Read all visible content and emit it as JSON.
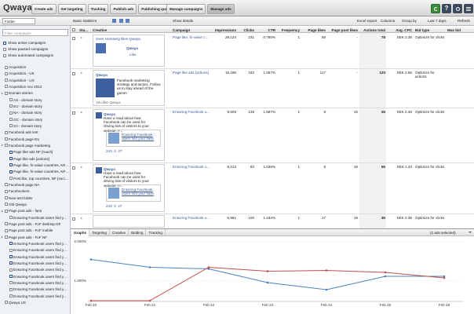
{
  "topbar": {
    "logo": "Qwaya",
    "workflow_buttons": [
      "Create ads",
      "Set targeting",
      "Tracking",
      "Publish ads",
      "Publishing queue"
    ],
    "manage_buttons": [
      "Manage campaigns",
      "Manage ads"
    ],
    "help": "?"
  },
  "toolbar": {
    "folder": "Folder",
    "basic_statistics": "Basic statistics",
    "show_details": "Show details",
    "excel_export": "Excel export",
    "columns": "Columns",
    "group_by": "Group by",
    "date_range": "Last 7 days",
    "refresh": "Refresh"
  },
  "sidebar": {
    "filter_placeholder": "Filter campaigns",
    "options": [
      {
        "label": "Show active campaigns",
        "checked": true
      },
      {
        "label": "Show paused campaigns",
        "checked": false
      },
      {
        "label": "Show automated campaigns",
        "checked": false
      }
    ],
    "tree": [
      {
        "label": "Acquisition"
      },
      {
        "label": "Acquisition - UK"
      },
      {
        "label": "Acquisition - US"
      },
      {
        "label": "Acquisition nov 2012"
      },
      {
        "label": "Domain stories",
        "children": [
          {
            "label": "AS - domain story"
          },
          {
            "label": "EU - domain story"
          },
          {
            "label": "NA - domain story"
          },
          {
            "label": "OC - domain story"
          },
          {
            "label": "SA - domain story"
          }
        ]
      },
      {
        "label": "Facebook ads test"
      },
      {
        "label": "Facebook page EU"
      },
      {
        "label": "Facebook page marketing",
        "children": [
          {
            "label": "Page like ads NF [reach]",
            "checked": true
          },
          {
            "label": "Page like ads [actions]",
            "checked": true
          },
          {
            "label": "Page like, fn-value countries, NF, FoF [reach]",
            "checked": true
          },
          {
            "label": "Page like, fn-value countries, NF [social imp]",
            "checked": true
          },
          {
            "label": "Post like, top countries, NF [social imp]"
          }
        ]
      },
      {
        "label": "Facebook page NA"
      },
      {
        "label": "Facebookers"
      },
      {
        "label": "New test folder"
      },
      {
        "label": "Old Qwaya"
      },
      {
        "label": "Page post ads - fans",
        "children": [
          {
            "label": "Ensuring Facebook users find your fa"
          }
        ]
      },
      {
        "label": "Page post ads - FoF desktop NF"
      },
      {
        "label": "Page post ads - FoF mobile"
      },
      {
        "label": "Page post ads - FoF NF",
        "children": [
          {
            "label": "Ensuring Facebook users find your fa",
            "checked": true
          },
          {
            "label": "Ensuring Facebook users find your fa"
          },
          {
            "label": "Ensuring Facebook users find your fa",
            "checked": true
          },
          {
            "label": "Ensuring Facebook users find your fa",
            "checked": true
          },
          {
            "label": "Ensuring Facebook users find your fa"
          },
          {
            "label": "Ensuring Facebook users find your fa",
            "checked": true
          },
          {
            "label": "Ensuring Facebook users find your fa"
          },
          {
            "label": "Ensuring Facebook users find your fa"
          },
          {
            "label": "Ensuring Facebook users find your fa"
          }
        ]
      },
      {
        "label": "Qwaya US"
      }
    ]
  },
  "table": {
    "columns": [
      "Sta...",
      "Creative",
      "Campaign",
      "Impressions",
      "Clicks",
      "CTR",
      "Frequency",
      "Page likes",
      "Page post likes",
      "Actions total",
      "Avg. CPC",
      "Bid type",
      "Max bid"
    ],
    "rows": [
      {
        "creative": {
          "heading": "Sven Hamberg likes Qwaya.",
          "brand": "Qwaya",
          "action": "Like"
        },
        "campaign": "Page like, fn-value cou...",
        "values": [
          "28,124",
          "231",
          "0.760%",
          "1",
          "89",
          "-",
          "78",
          "SEK 2.38",
          "Optimize for clicks"
        ]
      },
      {
        "creative": {
          "heading": "Qwaya",
          "body": "Facebook marketing strategy and tactics. Follow us to stay ahead of the game!",
          "footer": "You like Qwaya"
        },
        "campaign": "Page like ads [actions]",
        "values": [
          "15,188",
          "162",
          "1.067%",
          "1",
          "117",
          "-",
          "120",
          "SEK 2.56",
          "Optimize for actions"
        ]
      },
      {
        "creative": {
          "heading": "Qwaya",
          "body": "Have a read about how Facebook can be used for driving lots of visitors to your website. P...",
          "link": "Ensuring Facebook users find your flash",
          "stats": "243  0  27"
        },
        "campaign": "Ensuring Facebook u...",
        "values": [
          "8,505",
          "135",
          "1.587%",
          "1",
          "9",
          "15",
          "26",
          "SEK 2.46",
          "Optimize for clicks"
        ]
      },
      {
        "creative": {
          "heading": "Qwaya",
          "body": "Have a read about how Facebook can be used for driving lots of visitors to your website. P...",
          "link": "Ensuring Facebook users find your flash",
          "stats": "243  0  27"
        },
        "campaign": "Ensuring Facebook u...",
        "values": [
          "8,013",
          "83",
          "1.036%",
          "1",
          "8",
          "19",
          "55",
          "SEK 1.43",
          "Optimize for clicks"
        ]
      },
      {
        "campaign": "Ensuring Facebook u...",
        "values": [
          "6,981",
          "100",
          "1.432%",
          "1",
          "17",
          "19",
          "36",
          "SEK 2.38",
          "Optimize for clicks"
        ]
      }
    ]
  },
  "details": {
    "tabs": [
      "Graphs",
      "Targeting",
      "Creative",
      "Bidding",
      "Tracking"
    ],
    "selection": "(2 ads selected)"
  },
  "chart_data": {
    "type": "line",
    "categories": [
      "Feb 20",
      "Feb 21",
      "Feb 22",
      "Feb 23",
      "Feb 24",
      "Feb 25",
      "Feb 26"
    ],
    "series": [
      {
        "color": "#4f81bd",
        "values": [
          1.55,
          1.35,
          1.31,
          0.96,
          0.78,
          1.12,
          1.12
        ]
      },
      {
        "color": "#c0504d",
        "values": [
          0.5,
          0.5,
          1.35,
          1.25,
          1.27,
          1.22,
          1.08
        ]
      }
    ],
    "ylim": [
      0.5,
      2.1
    ],
    "yticks": [
      {
        "value": 1,
        "label": "1.000%"
      },
      {
        "value": 2,
        "label": "2.000%"
      }
    ],
    "grid": true
  }
}
